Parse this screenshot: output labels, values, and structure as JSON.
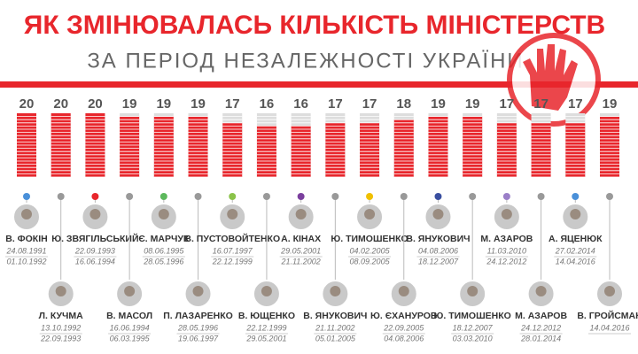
{
  "chart_data": {
    "type": "bar",
    "title": "ЯК ЗМІНЮВАЛАСЬ КІЛЬКІСТЬ МІНІСТЕРСТВ",
    "subtitle": "ЗА ПЕРІОД НЕЗАЛЕЖНОСТІ УКРАЇНИ",
    "categories": [
      "В. ФОКІН",
      "Л. КУЧМА",
      "Ю. ЗВЯГІЛЬСЬКИЙ",
      "В. МАСОЛ",
      "Є. МАРЧУК",
      "П. ЛАЗАРЕНКО",
      "В. ПУСТОВОЙТЕНКО",
      "В. ЮЩЕНКО",
      "А. КІНАХ",
      "В. ЯНУКОВИЧ",
      "Ю. ТИМОШЕНКО",
      "Ю. ЄХАНУРОВ",
      "В. ЯНУКОВИЧ",
      "Ю. ТИМОШЕНКО",
      "М. АЗАРОВ",
      "М. АЗАРОВ",
      "А. ЯЦЕНЮК",
      "В. ГРОЙСМАН"
    ],
    "start_dates": [
      "24.08.1991",
      "13.10.1992",
      "22.09.1993",
      "16.06.1994",
      "08.06.1995",
      "28.05.1996",
      "16.07.1997",
      "22.12.1999",
      "29.05.2001",
      "21.11.2002",
      "04.02.2005",
      "22.09.2005",
      "04.08.2006",
      "18.12.2007",
      "11.03.2010",
      "24.12.2012",
      "27.02.2014",
      "14.04.2016"
    ],
    "end_dates": [
      "01.10.1992",
      "22.09.1993",
      "16.06.1994",
      "06.03.1995",
      "28.05.1996",
      "19.06.1997",
      "22.12.1999",
      "29.05.2001",
      "21.11.2002",
      "05.01.2005",
      "08.09.2005",
      "04.08.2006",
      "18.12.2007",
      "03.03.2010",
      "24.12.2012",
      "28.01.2014",
      "14.04.2016",
      null
    ],
    "values": [
      20,
      20,
      20,
      19,
      19,
      19,
      17,
      16,
      16,
      17,
      17,
      18,
      19,
      19,
      17,
      17,
      17,
      19
    ],
    "color": "#e8262c",
    "ylim": [
      0,
      20
    ]
  }
}
